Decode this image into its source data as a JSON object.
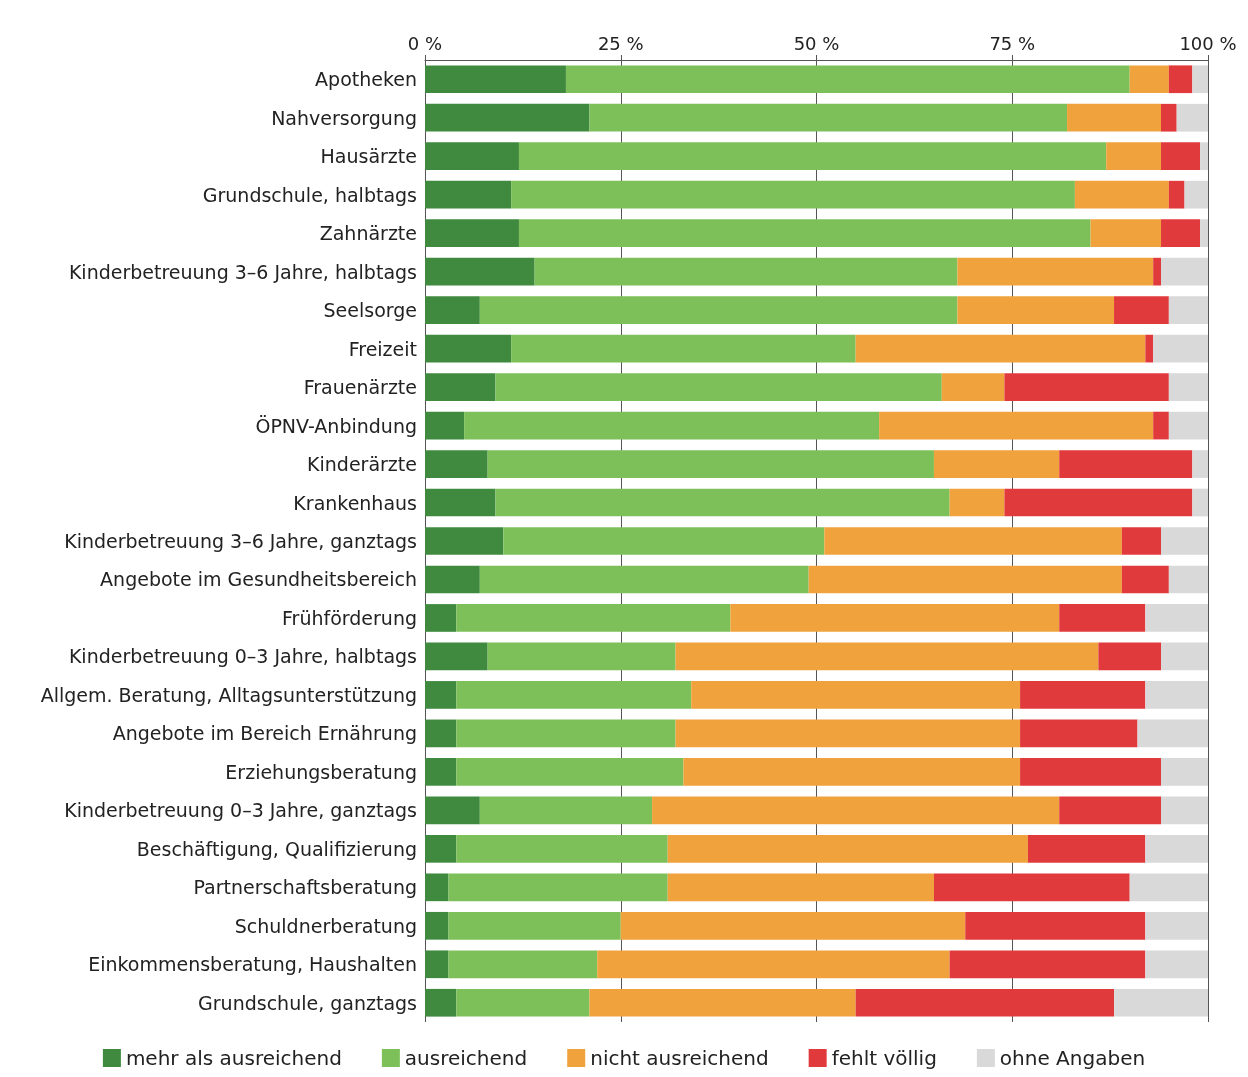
{
  "chart_data": {
    "type": "bar",
    "orientation": "horizontal",
    "stacked": true,
    "categories": [
      "Apotheken",
      "Nahversorgung",
      "Hausärzte",
      "Grundschule, halbtags",
      "Zahnärzte",
      "Kinderbetreuung 3–6 Jahre, halbtags",
      "Seelsorge",
      "Freizeit",
      "Frauenärzte",
      "ÖPNV-Anbindung",
      "Kinderärzte",
      "Krankenhaus",
      "Kinderbetreuung 3–6 Jahre, ganztags",
      "Angebote im Gesundheitsbereich",
      "Frühförderung",
      "Kinderbetreuung 0–3 Jahre, halbtags",
      "Allgem. Beratung, Alltagsunterstützung",
      "Angebote im Bereich Ernährung",
      "Erziehungsberatung",
      "Kinderbetreuung 0–3 Jahre, ganztags",
      "Beschäftigung, Qualifizierung",
      "Partnerschaftsberatung",
      "Schuldnerberatung",
      "Einkommensberatung, Haushalten",
      "Grundschule, ganztags"
    ],
    "series": [
      {
        "name": "mehr als ausreichend",
        "color": "#3f8a3f",
        "values": [
          18,
          21,
          12,
          11,
          12,
          14,
          7,
          11,
          9,
          5,
          8,
          9,
          10,
          7,
          4,
          8,
          4,
          4,
          4,
          7,
          4,
          3,
          3,
          3,
          4
        ]
      },
      {
        "name": "ausreichend",
        "color": "#7dc05a",
        "values": [
          72,
          61,
          75,
          72,
          73,
          54,
          61,
          44,
          57,
          53,
          57,
          58,
          41,
          42,
          35,
          24,
          30,
          28,
          29,
          22,
          27,
          28,
          22,
          19,
          17
        ]
      },
      {
        "name": "nicht ausreichend",
        "color": "#f0a23c",
        "values": [
          5,
          12,
          7,
          12,
          9,
          25,
          20,
          37,
          8,
          35,
          16,
          7,
          38,
          40,
          42,
          54,
          42,
          44,
          43,
          52,
          46,
          34,
          44,
          45,
          34
        ]
      },
      {
        "name": "fehlt völlig",
        "color": "#e03a3c",
        "values": [
          3,
          2,
          5,
          2,
          5,
          1,
          7,
          1,
          21,
          2,
          17,
          24,
          5,
          6,
          11,
          8,
          16,
          15,
          18,
          13,
          15,
          25,
          23,
          25,
          33
        ]
      },
      {
        "name": "ohne Angaben",
        "color": "#d9d9d9",
        "values": [
          2,
          4,
          1,
          3,
          1,
          6,
          5,
          7,
          5,
          5,
          2,
          2,
          6,
          5,
          8,
          6,
          8,
          9,
          6,
          6,
          8,
          10,
          8,
          8,
          12
        ]
      }
    ],
    "xlim": [
      0,
      100
    ],
    "xticks": [
      {
        "value": 0,
        "label": "0 %"
      },
      {
        "value": 25,
        "label": "25 %"
      },
      {
        "value": 50,
        "label": "50 %"
      },
      {
        "value": 75,
        "label": "75 %"
      },
      {
        "value": 100,
        "label": "100 %"
      }
    ],
    "grid": "x",
    "legend": "bottom"
  }
}
